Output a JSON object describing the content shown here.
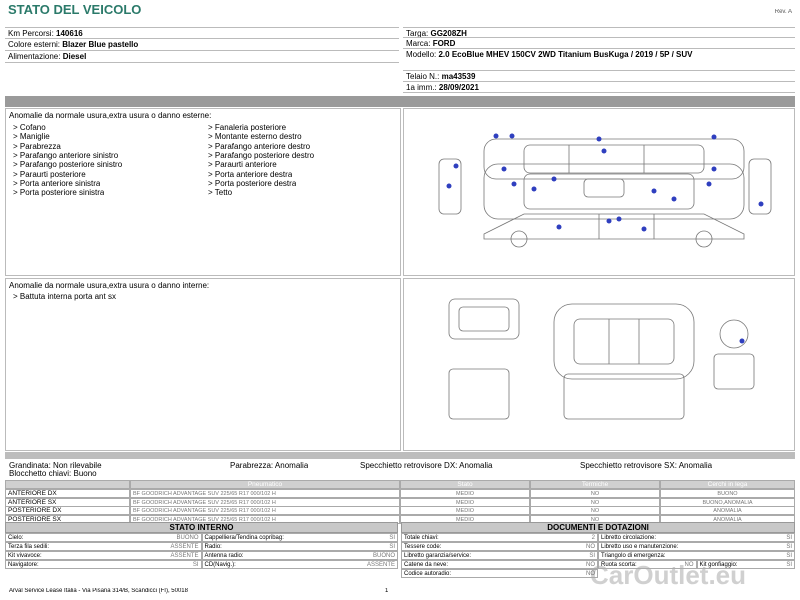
{
  "header": {
    "title": "STATO DEL VEICOLO",
    "revision": "Rev. A"
  },
  "vehicle_left": [
    {
      "label": "Km Percorsi:",
      "value": "140616"
    },
    {
      "label": "Colore esterni:",
      "value": "Blazer Blue pastello"
    },
    {
      "label": "Alimentazione:",
      "value": "Diesel"
    }
  ],
  "vehicle_right": [
    {
      "label": "Targa:",
      "value": "GG208ZH"
    },
    {
      "label": "Marca:",
      "value": "FORD"
    },
    {
      "label": "Modello:",
      "value": "2.0 EcoBlue MHEV 150CV 2WD Titanium BusKuga / 2019 / 5P / SUV"
    },
    {
      "label": "Telaio N.:",
      "value": "ma43539"
    },
    {
      "label": "1a imm.:",
      "value": "28/09/2021"
    }
  ],
  "exterior": {
    "title": "Anomalie da normale usura,extra usura o danno esterne:",
    "items_col1": [
      "> Cofano",
      "> Maniglie",
      "> Parabrezza",
      "> Parafango anteriore sinistro",
      "> Parafango posteriore sinistro",
      "> Paraurti posteriore",
      "> Porta anteriore sinistra",
      "> Porta posteriore sinistra"
    ],
    "items_col2": [
      "> Fanaleria posteriore",
      "> Montante esterno destro",
      "> Parafango anteriore destro",
      "> Parafango posteriore destro",
      "> Paraurti anteriore",
      "> Porta anteriore destra",
      "> Porta posteriore destra",
      "> Tetto"
    ]
  },
  "interior": {
    "title": "Anomalie da normale usura,extra usura o danno interne:",
    "items": [
      "> Battuta interna porta ant sx"
    ]
  },
  "checks": [
    [
      {
        "label": "Grandinata:",
        "value": "Non rilevabile"
      },
      {
        "label": "Parabrezza:",
        "value": "Anomalia"
      },
      {
        "label": "Specchietto retrovisore DX:",
        "value": "Anomalia"
      },
      {
        "label": "Specchietto retrovisore SX:",
        "value": "Anomalia"
      }
    ],
    [
      {
        "label": "Blocchetto chiavi:",
        "value": "Buono"
      }
    ]
  ],
  "tyres": {
    "headers": [
      "Pneumatico",
      "Stato",
      "Termiche",
      "Cerchi in lega"
    ],
    "rows": [
      [
        "ANTERIORE DX",
        "BF GOODRICH ADVANTAGE  SUV 225/65 R17 000/102 H",
        "MEDIO",
        "NO",
        "BUONO"
      ],
      [
        "ANTERIORE SX",
        "BF GOODRICH ADVANTAGE  SUV 225/65 R17 000/102 H",
        "MEDIO",
        "NO",
        "BUONO,ANOMALIA"
      ],
      [
        "POSTERIORE DX",
        "BF GOODRICH ADVANTAGE  SUV 225/65 R17 000/102 H",
        "MEDIO",
        "NO",
        "ANOMALIA"
      ],
      [
        "POSTERIORE SX",
        "BF GOODRICH ADVANTAGE  SUV 225/65 R17 000/102 H",
        "MEDIO",
        "NO",
        "ANOMALIA"
      ]
    ]
  },
  "stato_interno": {
    "title": "STATO INTERNO",
    "rows": [
      [
        {
          "label": "Cielo:",
          "value": "BUONO"
        },
        {
          "label": "Cappelliera/Tendina copribag:",
          "value": "SI"
        }
      ],
      [
        {
          "label": "Terza fila sedili:",
          "value": "ASSENTE"
        },
        {
          "label": "Radio:",
          "value": "SI"
        }
      ],
      [
        {
          "label": "Kit vivavoce:",
          "value": "ASSENTE"
        },
        {
          "label": "Antenna radio:",
          "value": "BUONO"
        }
      ],
      [
        {
          "label": "Navigatore:",
          "value": "SI"
        },
        {
          "label": "CD(Navig.):",
          "value": "ASSENTE"
        }
      ]
    ]
  },
  "documenti": {
    "title": "DOCUMENTI E DOTAZIONI",
    "rows": [
      [
        {
          "label": "Totale chiavi:",
          "value": "2"
        },
        {
          "label": "Libretto circolazione:",
          "value": "SI"
        }
      ],
      [
        {
          "label": "Tessere code:",
          "value": "NO"
        },
        {
          "label": "Libretto uso e manutenzione:",
          "value": "SI"
        }
      ],
      [
        {
          "label": "Libretto garanzia/service:",
          "value": "SI"
        },
        {
          "label": "Triangolo di emergenza:",
          "value": "SI"
        }
      ],
      [
        {
          "label": "Catene da neve:",
          "value": "NO"
        },
        {
          "label": "Ruota scorta:",
          "value": "NO"
        },
        {
          "label": "Kit gonfiaggio:",
          "value": "SI"
        }
      ],
      [
        {
          "label": "Codice autoradio:",
          "value": "NO"
        }
      ]
    ]
  },
  "footer": {
    "address": "Arval Service Lease Italia - Via Pisana 314/B, Scandicci (FI), 50018",
    "page": "1",
    "watermark": "CarOutlet.eu"
  }
}
